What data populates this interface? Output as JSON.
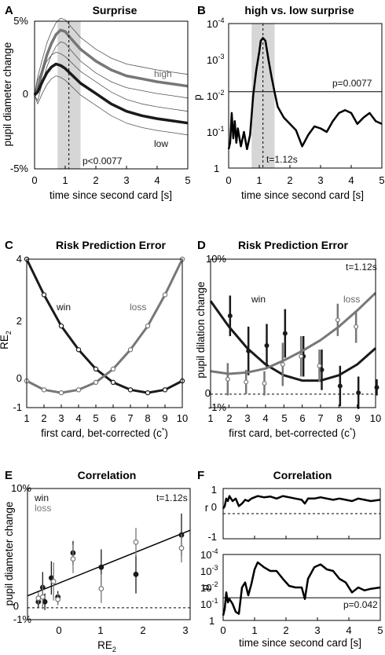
{
  "panels": [
    {
      "letter": "A",
      "title": "Surprise",
      "xlabel": "time since second card [s]",
      "ylabel": "pupil diameter change",
      "xticks": [
        "0",
        "1",
        "2",
        "3",
        "4",
        "5"
      ],
      "yticks": [
        "5%",
        "0",
        "-5%"
      ],
      "annotations": [
        "high",
        "low",
        "p<0.0077"
      ]
    },
    {
      "letter": "B",
      "title": "high vs. low surprise",
      "xlabel": "time since second card [s]",
      "ylabel": "p",
      "xticks": [
        "0",
        "1",
        "2",
        "3",
        "4",
        "5"
      ],
      "ytick_mantissa": [
        "10",
        "10",
        "10",
        "10",
        "1"
      ],
      "ytick_exponent": [
        "-4",
        "-3",
        "-2",
        "-1",
        ""
      ],
      "annotations": [
        "p=0.0077",
        "t=1.12s"
      ]
    },
    {
      "letter": "C",
      "title": "Risk Prediction Error",
      "xlabel": "first card, bet-corrected (c",
      "xlabel_sup": "*",
      "xlabel_end": ")",
      "ylabel": "RE",
      "ylabel_sub": "2",
      "xticks": [
        "1",
        "2",
        "3",
        "4",
        "5",
        "6",
        "7",
        "8",
        "9",
        "10"
      ],
      "yticks": [
        "4",
        "2",
        "0",
        "-1"
      ],
      "annotations": [
        "win",
        "loss"
      ]
    },
    {
      "letter": "D",
      "title": "Risk Prediction Error",
      "xlabel": "first card, bet-corrected (c",
      "xlabel_sup": "*",
      "xlabel_end": ")",
      "ylabel": "pupil dilation change",
      "xticks": [
        "1",
        "2",
        "3",
        "4",
        "5",
        "6",
        "7",
        "8",
        "9",
        "10"
      ],
      "yticks": [
        "10%",
        "0",
        "-1%"
      ],
      "annotations": [
        "win",
        "loss",
        "t=1.12s"
      ]
    },
    {
      "letter": "E",
      "title": "Correlation",
      "xlabel": "RE",
      "xlabel_sub": "2",
      "ylabel": "pupil diameter change",
      "xticks": [
        "0",
        "1",
        "2",
        "3"
      ],
      "yticks": [
        "10%",
        "0",
        "-1%"
      ],
      "annotations": [
        "win",
        "loss",
        "t=1.12s"
      ]
    },
    {
      "letter": "F",
      "title": "Correlation",
      "xlabel": "time since second card [s]",
      "ylabel_top": "r",
      "ylabel_bottom": "p",
      "xticks": [
        "0",
        "1",
        "2",
        "3",
        "4",
        "5"
      ],
      "yticks_top": [
        "1",
        "0",
        "-1"
      ],
      "ytick_mantissa": [
        "10",
        "10",
        "10",
        "10",
        "1"
      ],
      "ytick_exponent": [
        "-4",
        "-3",
        "-2",
        "-1",
        ""
      ],
      "annotations": [
        "p=0.042"
      ]
    }
  ],
  "colors": {
    "win": "#1a1a1a",
    "loss": "#777777",
    "shade": "#d6d6d6"
  },
  "chart_data": [
    {
      "panel": "A",
      "type": "line",
      "xlim": [
        0,
        5
      ],
      "ylim": [
        -5,
        5
      ],
      "x": [
        0,
        0.1,
        0.25,
        0.4,
        0.55,
        0.7,
        0.85,
        1.0,
        1.2,
        1.5,
        2.0,
        2.5,
        3.0,
        3.5,
        4.0,
        4.5,
        5.0
      ],
      "series": [
        {
          "name": "high",
          "values": [
            0,
            0.4,
            1.6,
            2.7,
            3.5,
            4.1,
            4.4,
            4.3,
            3.8,
            3.1,
            2.3,
            1.7,
            1.3,
            1.1,
            0.9,
            0.75,
            0.6
          ]
        },
        {
          "name": "low",
          "values": [
            0,
            0.2,
            0.9,
            1.5,
            1.9,
            2.1,
            2.0,
            1.8,
            1.4,
            0.8,
            0.1,
            -0.6,
            -1.1,
            -1.4,
            -1.6,
            -1.75,
            -1.9
          ]
        }
      ],
      "error_offset": 0.8,
      "shaded_x": [
        0.75,
        1.5
      ],
      "vline_x": 1.12
    },
    {
      "panel": "B",
      "type": "line",
      "yscale": "log-p",
      "xlim": [
        0,
        5
      ],
      "ylim": [
        1,
        0.0001
      ],
      "x": [
        0,
        0.05,
        0.1,
        0.15,
        0.2,
        0.25,
        0.3,
        0.4,
        0.5,
        0.6,
        0.7,
        0.8,
        0.9,
        1.0,
        1.05,
        1.12,
        1.2,
        1.3,
        1.4,
        1.5,
        1.6,
        1.8,
        2.0,
        2.2,
        2.4,
        2.6,
        2.8,
        3.0,
        3.2,
        3.4,
        3.6,
        3.8,
        4.0,
        4.2,
        4.4,
        4.6,
        4.8,
        5.0
      ],
      "values": [
        0.3,
        0.2,
        0.03,
        0.15,
        0.05,
        0.2,
        0.08,
        0.25,
        0.1,
        0.3,
        0.12,
        0.01,
        0.002,
        0.0006,
        0.0003,
        0.00025,
        0.0003,
        0.001,
        0.003,
        0.008,
        0.02,
        0.04,
        0.06,
        0.09,
        0.25,
        0.12,
        0.07,
        0.08,
        0.1,
        0.05,
        0.03,
        0.025,
        0.03,
        0.06,
        0.04,
        0.03,
        0.05,
        0.06
      ],
      "threshold": 0.0077,
      "shaded_x": [
        0.75,
        1.5
      ],
      "vline_x": 1.12
    },
    {
      "panel": "C",
      "type": "line",
      "xlim": [
        1,
        10
      ],
      "ylim": [
        -1,
        4
      ],
      "x": [
        1,
        2,
        3,
        4,
        5,
        6,
        7,
        8,
        9,
        10
      ],
      "series": [
        {
          "name": "win",
          "values": [
            4.0,
            2.8,
            1.75,
            0.95,
            0.3,
            -0.15,
            -0.4,
            -0.5,
            -0.4,
            -0.1
          ]
        },
        {
          "name": "loss",
          "values": [
            -0.1,
            -0.4,
            -0.5,
            -0.4,
            -0.15,
            0.3,
            0.95,
            1.75,
            2.8,
            4.0
          ]
        }
      ]
    },
    {
      "panel": "D",
      "type": "scatter",
      "xlim": [
        1,
        10
      ],
      "ylim": [
        -1,
        10
      ],
      "x": [
        1,
        2,
        3,
        4,
        5,
        6,
        7,
        8,
        9,
        10
      ],
      "series": [
        {
          "name": "win",
          "values": [
            null,
            5.8,
            3.2,
            3.6,
            4.5,
            2.8,
            1.8,
            0.6,
            0.1,
            0.5
          ],
          "errors": [
            null,
            1.5,
            1.8,
            1.6,
            1.8,
            1.5,
            1.5,
            1.5,
            1.2,
            0.6
          ],
          "fit": [
            6.9,
            5.0,
            3.4,
            2.2,
            1.4,
            1.0,
            1.0,
            1.4,
            2.2,
            3.4
          ]
        },
        {
          "name": "loss",
          "values": [
            null,
            1.1,
            0.9,
            0.8,
            2.2,
            2.8,
            2.1,
            5.5,
            5.0,
            null
          ],
          "errors": [
            null,
            1.2,
            0.9,
            0.9,
            1.6,
            1.5,
            1.2,
            1.2,
            1.2,
            null
          ],
          "fit": [
            1.7,
            1.5,
            1.6,
            1.9,
            2.5,
            3.2,
            4.0,
            5.0,
            6.2,
            7.5
          ]
        }
      ]
    },
    {
      "panel": "E",
      "type": "scatter",
      "xlim": [
        -0.75,
        3
      ],
      "ylim": [
        -1,
        10
      ],
      "series": [
        {
          "name": "win",
          "x": [
            -0.5,
            -0.4,
            -0.35,
            -0.2,
            -0.05,
            0.3,
            0.95,
            1.75,
            2.8
          ],
          "values": [
            0.5,
            1.7,
            0.5,
            2.5,
            0.9,
            4.6,
            3.4,
            2.8,
            6.1
          ],
          "errors": [
            0.5,
            1.3,
            0.7,
            1.4,
            0.5,
            1.0,
            1.5,
            1.6,
            1.8
          ]
        },
        {
          "name": "loss",
          "x": [
            -0.5,
            -0.4,
            -0.15,
            -0.05,
            0.3,
            0.95,
            1.75,
            2.8
          ],
          "values": [
            0.8,
            0.9,
            2.2,
            0.7,
            4.1,
            1.6,
            5.5,
            5.0
          ],
          "errors": [
            0.5,
            1.0,
            1.6,
            0.5,
            1.2,
            1.2,
            1.2,
            1.2
          ]
        }
      ],
      "fit": {
        "x": [
          -0.75,
          3.0
        ],
        "y": [
          1.0,
          6.5
        ]
      }
    },
    {
      "panel": "F",
      "type": "line",
      "xlim": [
        0,
        5
      ],
      "x": [
        0,
        0.05,
        0.1,
        0.15,
        0.2,
        0.3,
        0.4,
        0.5,
        0.6,
        0.7,
        0.8,
        0.9,
        1.0,
        1.1,
        1.3,
        1.5,
        1.7,
        1.9,
        2.1,
        2.3,
        2.5,
        2.6,
        2.7,
        2.9,
        3.1,
        3.3,
        3.5,
        3.7,
        3.9,
        4.1,
        4.3,
        4.5,
        4.7,
        5.0
      ],
      "series": [
        {
          "name": "r",
          "ylim": [
            -1,
            1
          ],
          "values": [
            0.2,
            0.3,
            0.6,
            0.5,
            0.7,
            0.5,
            0.6,
            0.3,
            0.4,
            0.55,
            0.5,
            0.6,
            0.65,
            0.7,
            0.65,
            0.68,
            0.6,
            0.7,
            0.65,
            0.6,
            0.55,
            0.4,
            0.6,
            0.6,
            0.65,
            0.6,
            0.55,
            0.6,
            0.55,
            0.5,
            0.6,
            0.55,
            0.5,
            0.55
          ]
        },
        {
          "name": "p",
          "yscale": "log-p",
          "ylim": [
            1,
            0.0001
          ],
          "values": [
            0.5,
            0.2,
            0.02,
            0.08,
            0.05,
            0.1,
            0.3,
            0.4,
            0.01,
            0.005,
            0.03,
            0.006,
            0.0008,
            0.0003,
            0.0006,
            0.001,
            0.001,
            0.003,
            0.008,
            0.01,
            0.01,
            0.05,
            0.003,
            0.0006,
            0.0004,
            0.0008,
            0.001,
            0.003,
            0.005,
            0.02,
            0.01,
            0.015,
            0.012,
            0.01
          ]
        }
      ],
      "threshold": 0.042
    }
  ]
}
